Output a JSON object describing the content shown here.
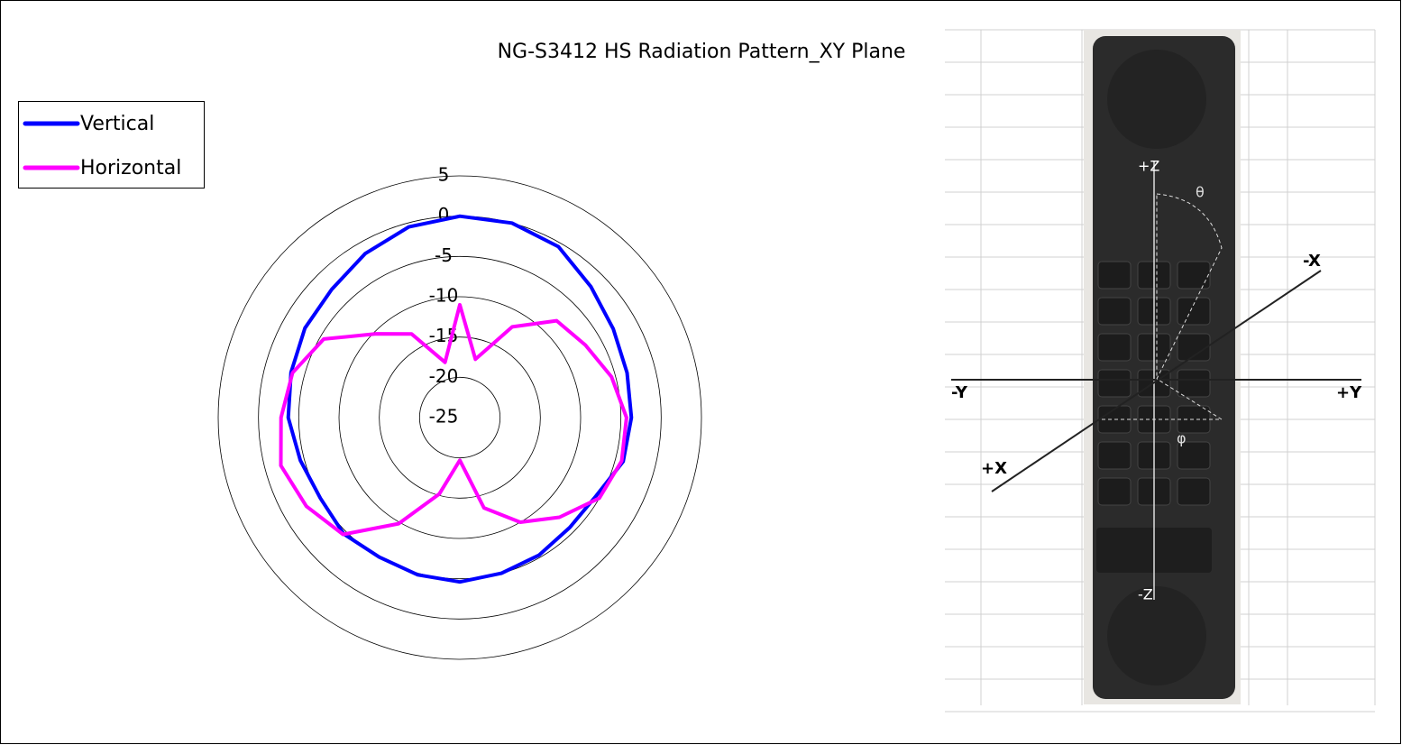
{
  "chart_data": {
    "type": "polar",
    "title": "NG-S3412 HS Radiation Pattern_XY Plane",
    "rlim": [
      -25,
      5
    ],
    "rticks": [
      5,
      0,
      -5,
      -10,
      -15,
      -20,
      -25
    ],
    "legend": "top-left",
    "series": [
      {
        "name": "Vertical",
        "color": "#0000ff",
        "values": [
          0,
          0,
          -0.5,
          -2,
          -3,
          -3.5,
          -3.7,
          -4,
          -5.5,
          -5.7,
          -5.3,
          -5,
          -4.6,
          -4.8,
          -5,
          -4.6,
          -5,
          -4.5,
          -3.7,
          -3.3,
          -2.8,
          -2.5,
          -1.5,
          -0.5
        ]
      },
      {
        "name": "Horizontal",
        "color": "#ff00ff",
        "values": [
          -11,
          -17.5,
          -12,
          -8,
          -7,
          -5.5,
          -4.3,
          -4.2,
          -5,
          -7.5,
          -10,
          -13.4,
          -19.7,
          -15.2,
          -9.8,
          -4.5,
          -3,
          -2,
          -2.8,
          -3.5,
          -5.5,
          -10.3,
          -13,
          -17.9
        ]
      }
    ]
  },
  "figure": {
    "axis_labels": {
      "minus_x": "-X",
      "minus_y": "-Y",
      "plus_y": "+Y",
      "plus_x": "+X",
      "plus_z": "+Z",
      "minus_z": "-Z",
      "theta": "θ",
      "phi": "φ"
    }
  }
}
